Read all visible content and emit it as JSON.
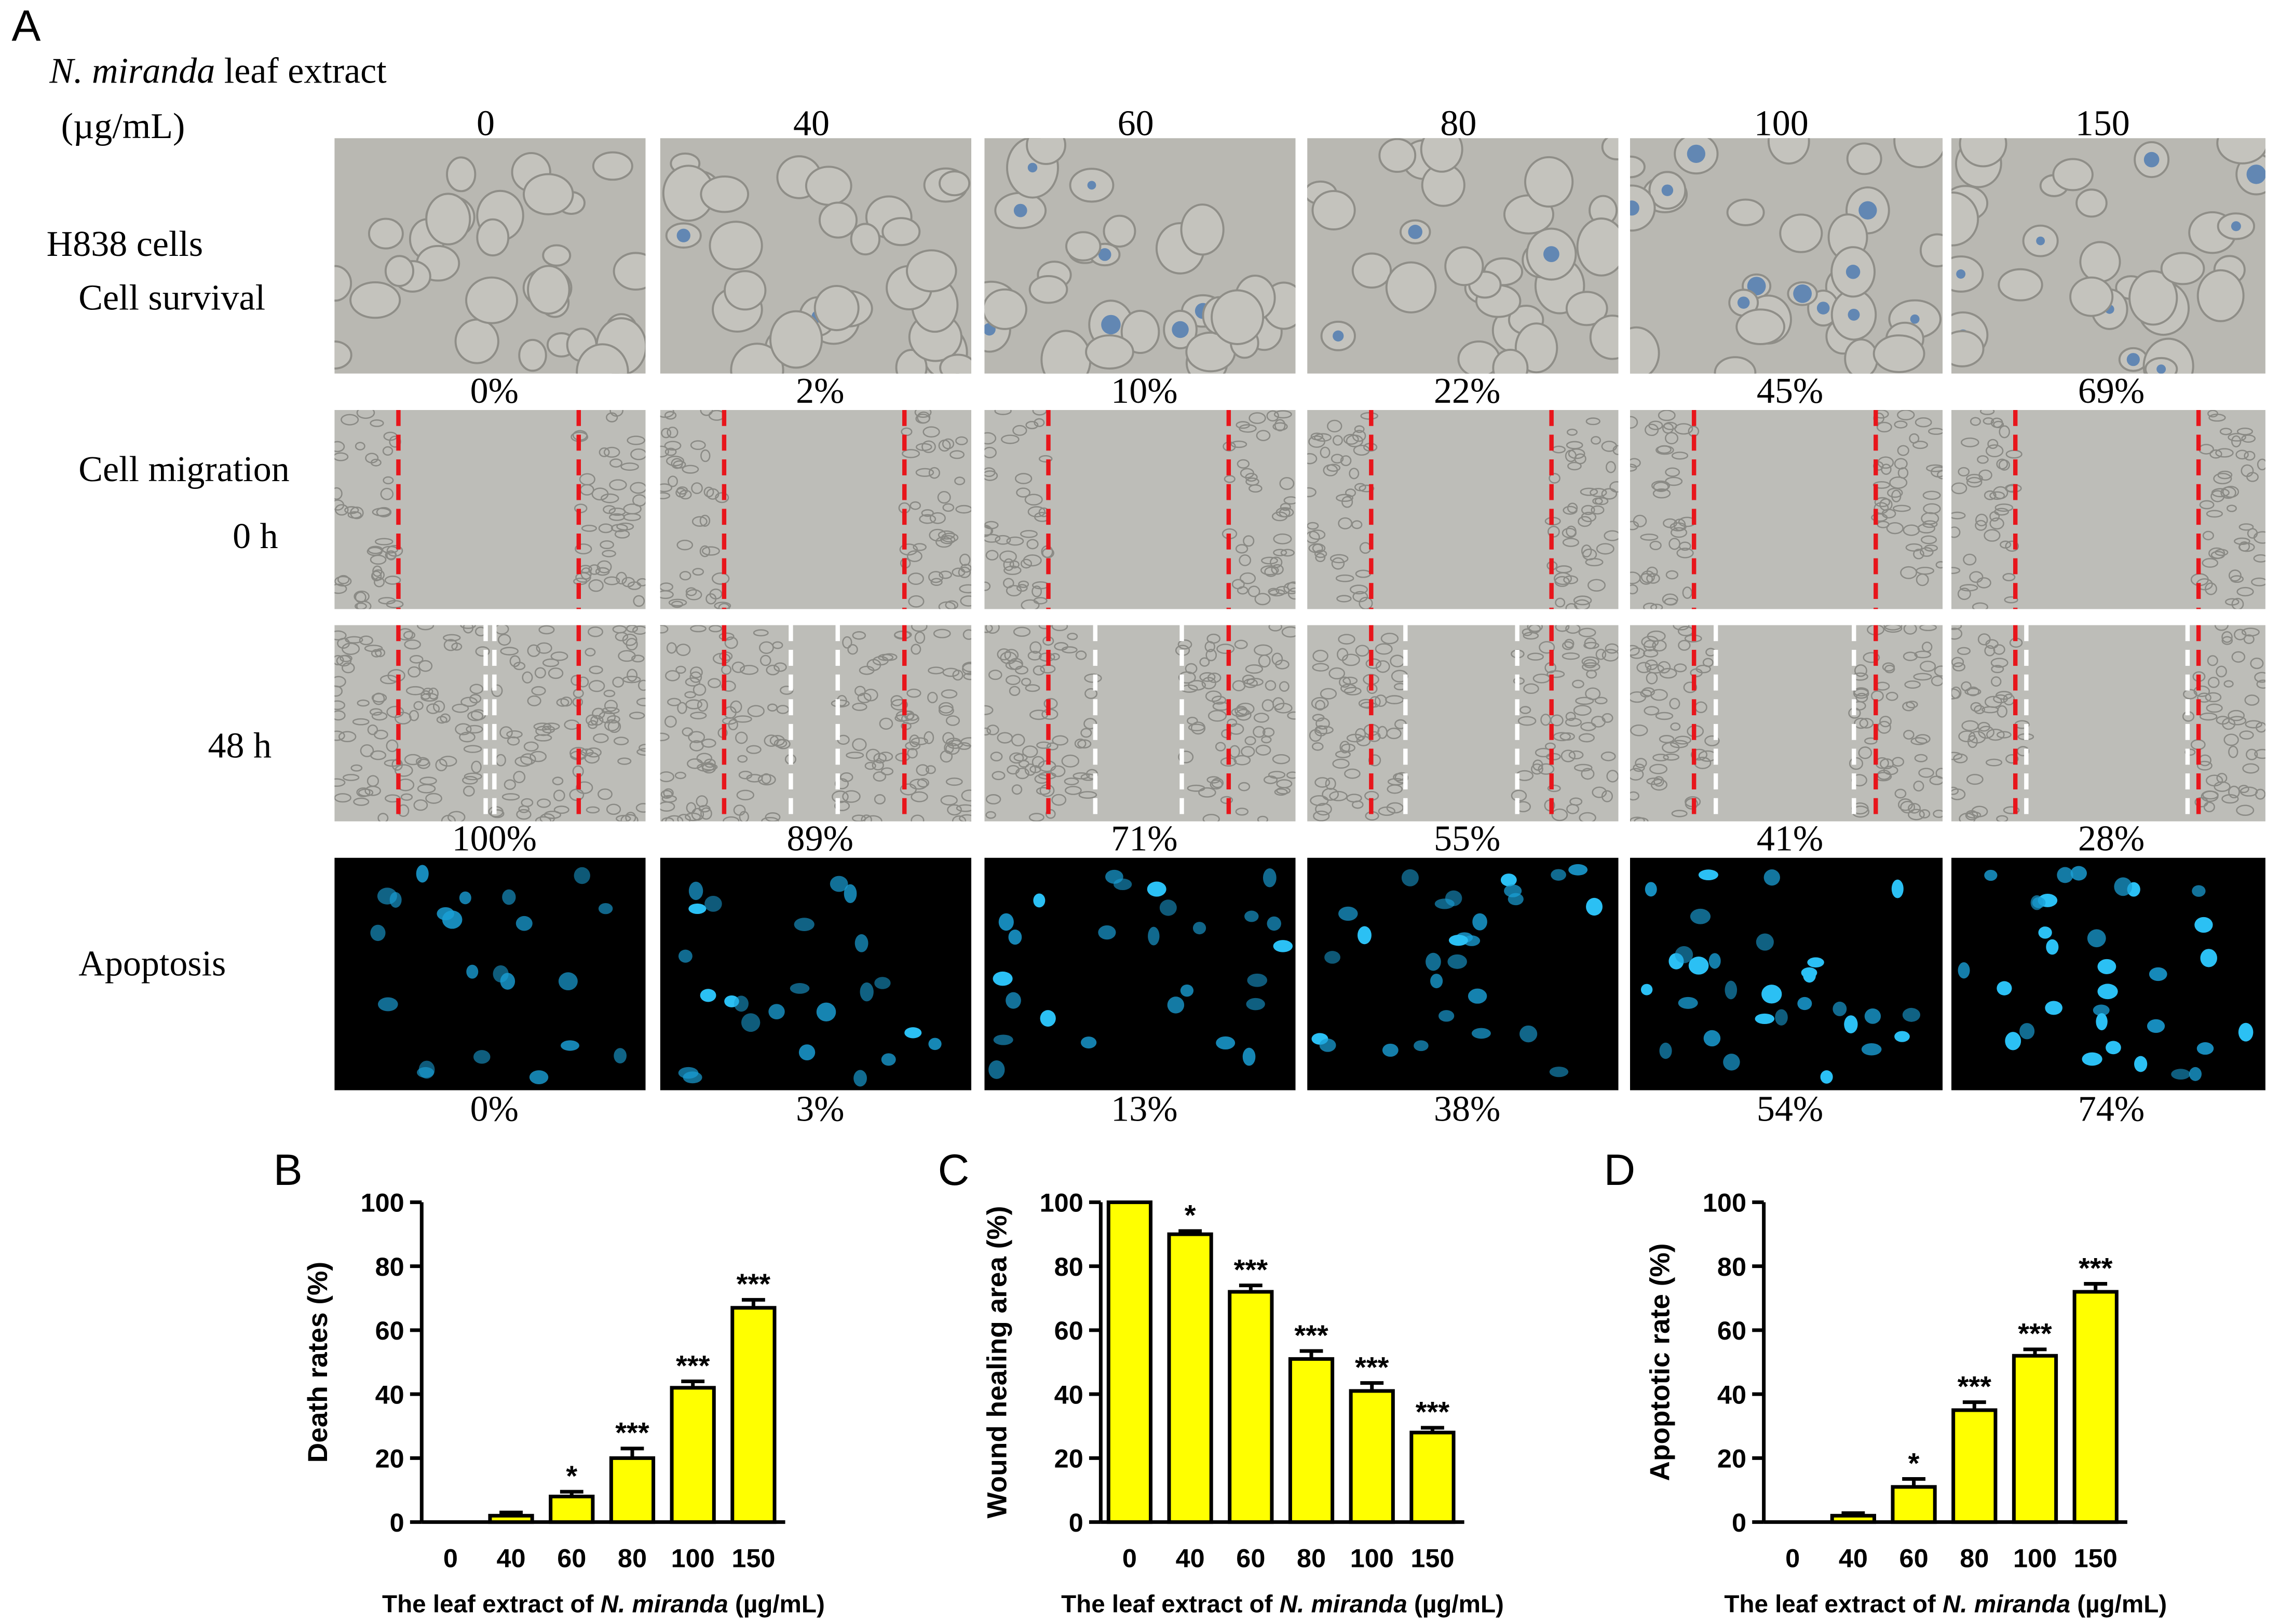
{
  "panel_a": {
    "letter": "A",
    "extract_italic": "N. miranda",
    "extract_rest": " leaf extract",
    "unit": "(µg/mL)",
    "doses": [
      "0",
      "40",
      "60",
      "80",
      "100",
      "150"
    ],
    "row_labels": {
      "cells": "H838 cells",
      "survival": "Cell survival",
      "migration": "Cell migration",
      "t0": "0 h",
      "t48": "48 h",
      "apoptosis": "Apoptosis"
    },
    "survival_pct": [
      "0%",
      "2%",
      "10%",
      "22%",
      "45%",
      "69%"
    ],
    "migration_pct": [
      "100%",
      "89%",
      "71%",
      "55%",
      "41%",
      "28%"
    ],
    "apoptosis_pct": [
      "0%",
      "3%",
      "13%",
      "38%",
      "54%",
      "74%"
    ]
  },
  "colors": {
    "bar_fill": "#ffff00",
    "bar_stroke": "#000000",
    "scratch_line": "#e8151b",
    "wound_edge": "#ffffff",
    "phase_bg": "#b3b3ad",
    "fluor_bg": "#000000",
    "nucleus": "#1a9fd6"
  },
  "chart_data": [
    {
      "panel": "B",
      "type": "bar",
      "categories": [
        "0",
        "40",
        "60",
        "80",
        "100",
        "150"
      ],
      "values": [
        0,
        2,
        8,
        20,
        42,
        67
      ],
      "errors": [
        0,
        1,
        1.5,
        3,
        2,
        2.5
      ],
      "significance": [
        "",
        "",
        "*",
        "***",
        "***",
        "***"
      ],
      "ylabel": "Death rates (%)",
      "xlabel_prefix": "The leaf extract of ",
      "xlabel_italic": "N. miranda",
      "xlabel_suffix": " (µg/mL)",
      "ylim": [
        0,
        100
      ],
      "yticks": [
        "0",
        "20",
        "40",
        "60",
        "80",
        "100"
      ]
    },
    {
      "panel": "C",
      "type": "bar",
      "categories": [
        "0",
        "40",
        "60",
        "80",
        "100",
        "150"
      ],
      "values": [
        100,
        90,
        72,
        51,
        41,
        28
      ],
      "errors": [
        0,
        1,
        2,
        2.5,
        2.5,
        1.5
      ],
      "significance": [
        "",
        "*",
        "***",
        "***",
        "***",
        "***"
      ],
      "ylabel": "Wound healing area (%)",
      "xlabel_prefix": "The leaf extract of ",
      "xlabel_italic": "N. miranda",
      "xlabel_suffix": " (µg/mL)",
      "ylim": [
        0,
        100
      ],
      "yticks": [
        "0",
        "20",
        "40",
        "60",
        "80",
        "100"
      ]
    },
    {
      "panel": "D",
      "type": "bar",
      "categories": [
        "0",
        "40",
        "60",
        "80",
        "100",
        "150"
      ],
      "values": [
        0,
        2,
        11,
        35,
        52,
        72
      ],
      "errors": [
        0,
        0.8,
        2.5,
        2.5,
        2,
        2.5
      ],
      "significance": [
        "",
        "",
        "*",
        "***",
        "***",
        "***"
      ],
      "ylabel": "Apoptotic rate (%)",
      "xlabel_prefix": "The leaf extract of ",
      "xlabel_italic": "N. miranda",
      "xlabel_suffix": " (µg/mL)",
      "ylim": [
        0,
        100
      ],
      "yticks": [
        "0",
        "20",
        "40",
        "60",
        "80",
        "100"
      ]
    }
  ]
}
